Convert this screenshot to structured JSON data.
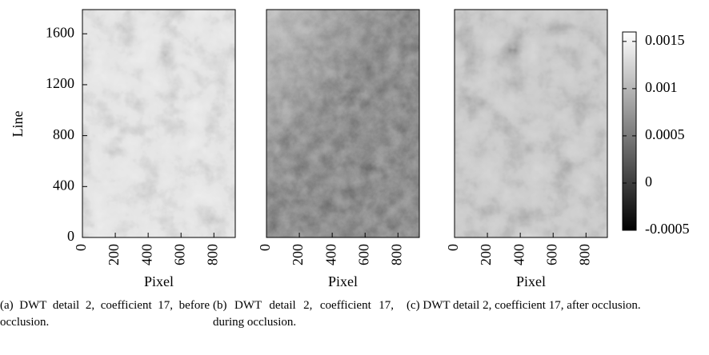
{
  "chart_data": [
    {
      "type": "heatmap",
      "xlabel": "Pixel",
      "ylabel": "Line",
      "xlim": [
        0,
        930
      ],
      "xticks": [
        0,
        200,
        400,
        600,
        800
      ],
      "ylim": [
        0,
        1790
      ],
      "yticks": [
        0,
        400,
        800,
        1200,
        1600
      ],
      "caption": "(a) DWT detail 2, coefficient 17, before occlusion."
    },
    {
      "type": "heatmap",
      "xlabel": "Pixel",
      "xlim": [
        0,
        930
      ],
      "xticks": [
        0,
        200,
        400,
        600,
        800
      ],
      "caption": "(b) DWT detail 2, coefficient 17, during occlusion."
    },
    {
      "type": "heatmap",
      "xlabel": "Pixel",
      "xlim": [
        0,
        930
      ],
      "xticks": [
        0,
        200,
        400,
        600,
        800
      ],
      "caption": "(c) DWT detail 2, coefficient 17, after occlusion.",
      "colorbar": {
        "lim": [
          -0.0005,
          0.0016
        ],
        "ticks": [
          -0.0005,
          0,
          0.0005,
          0.001,
          0.0015
        ]
      }
    }
  ]
}
